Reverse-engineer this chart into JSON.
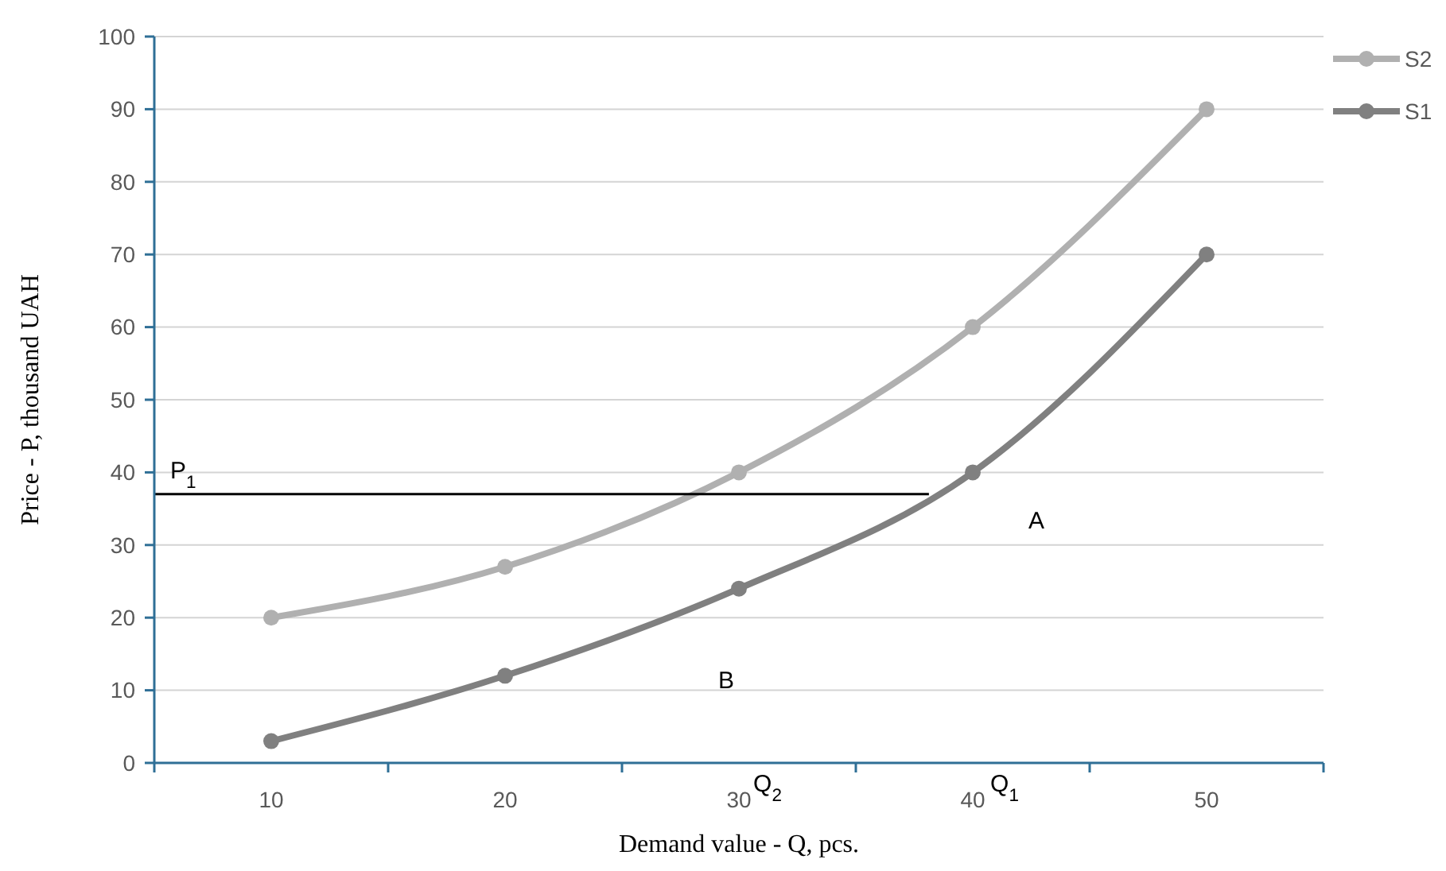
{
  "chart_data": {
    "type": "line",
    "xlabel": "Demand value - Q, pcs.",
    "ylabel": "Price - P, thousand UAH",
    "categories": [
      "10",
      "20",
      "30",
      "40",
      "50"
    ],
    "series": [
      {
        "name": "S2",
        "color": "#b0b0b0",
        "values": [
          20,
          27,
          40,
          60,
          90
        ]
      },
      {
        "name": "S1",
        "color": "#808080",
        "values": [
          3,
          12,
          24,
          40,
          70
        ]
      }
    ],
    "ylim": [
      0,
      100
    ],
    "yticks": [
      0,
      10,
      20,
      30,
      40,
      50,
      60,
      70,
      80,
      90,
      100
    ],
    "grid": "y",
    "legend": "right",
    "marker": "circle",
    "line_style": "solid",
    "ref_lines": [
      {
        "axis": "y",
        "value": 37,
        "label": "P$_{1}$",
        "color": "#000000"
      }
    ],
    "annotations": [
      "A",
      "B",
      "Q$_{2}$",
      "Q$_{1}$"
    ]
  }
}
